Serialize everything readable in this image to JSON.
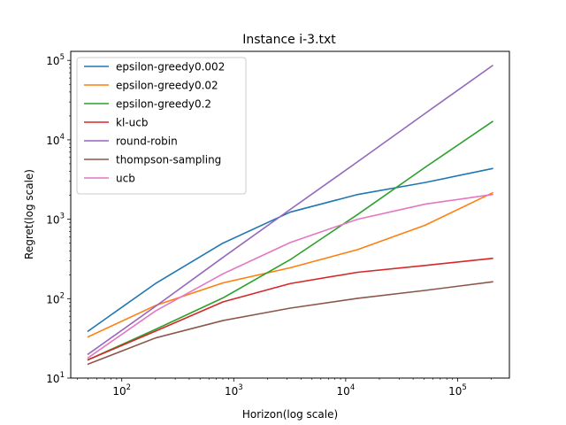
{
  "chart_data": {
    "type": "line",
    "title": "Instance i-3.txt",
    "xlabel": "Horizon(log scale)",
    "ylabel": "Regret(log scale)",
    "x_scale": "log",
    "y_scale": "log",
    "xlim": [
      35,
      290000
    ],
    "ylim": [
      10,
      130000
    ],
    "x_ticks": [
      {
        "value": 100,
        "base": "10",
        "exp": "2"
      },
      {
        "value": 1000,
        "base": "10",
        "exp": "3"
      },
      {
        "value": 10000,
        "base": "10",
        "exp": "4"
      },
      {
        "value": 100000,
        "base": "10",
        "exp": "5"
      }
    ],
    "y_ticks": [
      {
        "value": 10,
        "base": "10",
        "exp": "1"
      },
      {
        "value": 100,
        "base": "10",
        "exp": "2"
      },
      {
        "value": 1000,
        "base": "10",
        "exp": "3"
      },
      {
        "value": 10000,
        "base": "10",
        "exp": "4"
      },
      {
        "value": 100000,
        "base": "10",
        "exp": "5"
      }
    ],
    "grid": false,
    "legend_position": "top-left",
    "x": [
      50,
      200,
      800,
      3200,
      12800,
      51200,
      204800
    ],
    "series": [
      {
        "name": "epsilon-greedy0.002",
        "color": "#1f77b4",
        "values": [
          39,
          155,
          500,
          1230,
          2050,
          2900,
          4350
        ]
      },
      {
        "name": "epsilon-greedy0.02",
        "color": "#ff7f0e",
        "values": [
          33,
          82,
          158,
          245,
          415,
          840,
          2150
        ]
      },
      {
        "name": "epsilon-greedy0.2",
        "color": "#2ca02c",
        "values": [
          17,
          41,
          102,
          310,
          1150,
          4500,
          17000
        ]
      },
      {
        "name": "kl-ucb",
        "color": "#d62728",
        "values": [
          17,
          39,
          91,
          155,
          215,
          262,
          322
        ]
      },
      {
        "name": "round-robin",
        "color": "#9467bd",
        "values": [
          20,
          80,
          330,
          1330,
          5300,
          21500,
          86000
        ]
      },
      {
        "name": "thompson-sampling",
        "color": "#8c564b",
        "values": [
          15,
          32,
          53,
          76,
          101,
          127,
          163
        ]
      },
      {
        "name": "ucb",
        "color": "#e377c2",
        "values": [
          18,
          70,
          205,
          510,
          1000,
          1550,
          2050
        ]
      }
    ]
  }
}
